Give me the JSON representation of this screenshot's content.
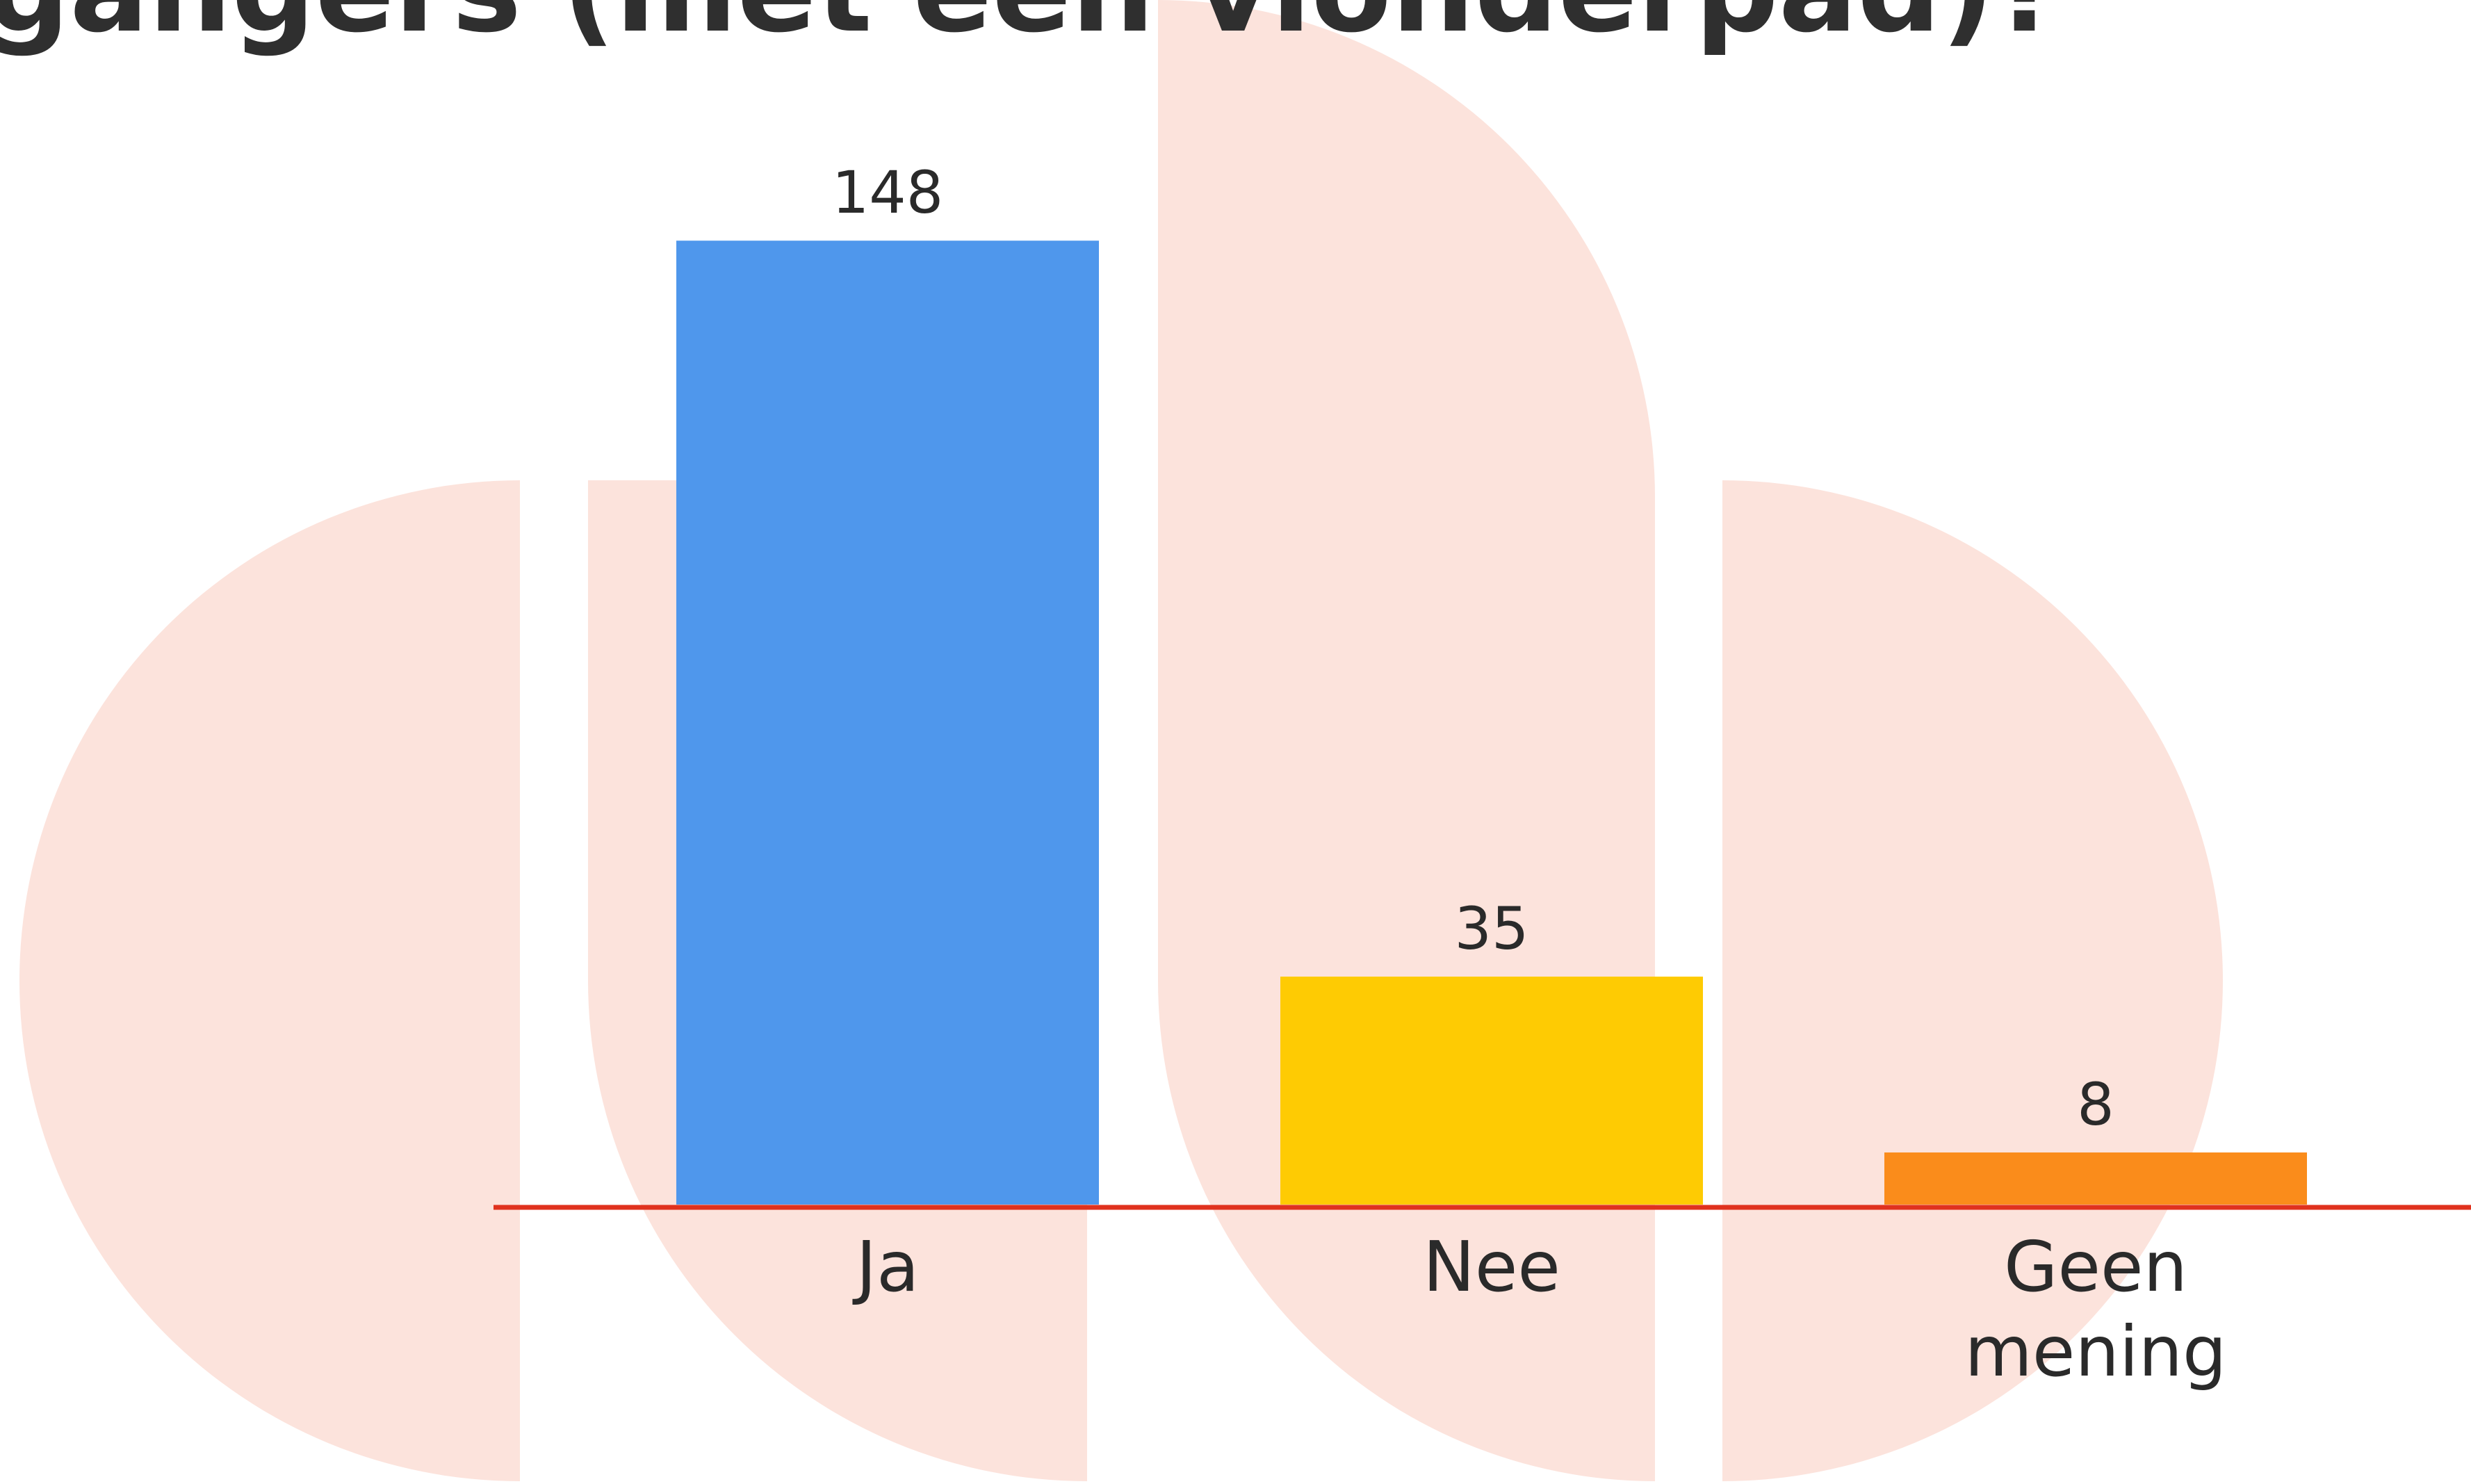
{
  "chart_data": {
    "type": "bar",
    "title": "gangers (met een vlonderpad)?",
    "categories": [
      "Ja",
      "Nee",
      "Geen mening"
    ],
    "values": [
      148,
      35,
      8
    ],
    "colors": [
      "#4f97ec",
      "#fecb03",
      "#fa8c1b"
    ]
  }
}
